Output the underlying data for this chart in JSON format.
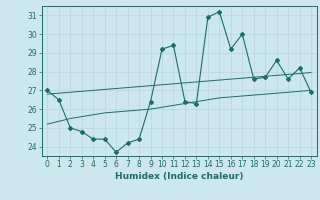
{
  "x": [
    0,
    1,
    2,
    3,
    4,
    5,
    6,
    7,
    8,
    9,
    10,
    11,
    12,
    13,
    14,
    15,
    16,
    17,
    18,
    19,
    20,
    21,
    22,
    23
  ],
  "y_main": [
    27,
    26.5,
    25,
    24.8,
    24.4,
    24.4,
    23.7,
    24.2,
    24.4,
    26.4,
    29.2,
    29.4,
    26.4,
    26.3,
    30.9,
    31.2,
    29.2,
    30.0,
    27.6,
    27.7,
    28.6,
    27.6,
    28.2,
    26.9
  ],
  "y_trend1": [
    26.8,
    26.85,
    26.9,
    26.95,
    27.0,
    27.05,
    27.1,
    27.15,
    27.2,
    27.25,
    27.3,
    27.35,
    27.4,
    27.45,
    27.5,
    27.55,
    27.6,
    27.65,
    27.7,
    27.75,
    27.8,
    27.85,
    27.9,
    27.95
  ],
  "y_trend2": [
    25.2,
    25.35,
    25.5,
    25.6,
    25.7,
    25.8,
    25.85,
    25.9,
    25.95,
    26.0,
    26.1,
    26.2,
    26.3,
    26.4,
    26.5,
    26.6,
    26.65,
    26.7,
    26.75,
    26.8,
    26.85,
    26.9,
    26.95,
    27.0
  ],
  "ylim": [
    23.5,
    31.5
  ],
  "yticks": [
    24,
    25,
    26,
    27,
    28,
    29,
    30,
    31
  ],
  "bg_color": "#cde8ec",
  "line_color": "#1a6e65",
  "grid_color": "#b8d8dc",
  "xlabel": "Humidex (Indice chaleur)",
  "tick_fontsize": 5.5,
  "label_fontsize": 6.5
}
